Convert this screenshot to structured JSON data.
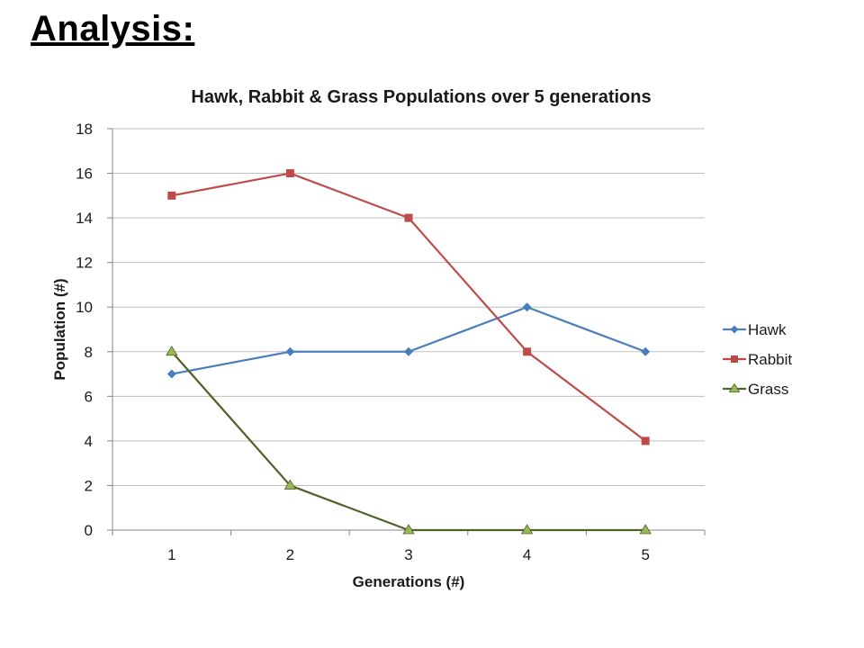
{
  "slide": {
    "title": "Analysis:"
  },
  "chart_data": {
    "type": "line",
    "title": "Hawk, Rabbit & Grass Populations over 5 generations",
    "xlabel": "Generations (#)",
    "ylabel": "Population (#)",
    "categories": [
      "1",
      "2",
      "3",
      "4",
      "5"
    ],
    "ylim": [
      0,
      18
    ],
    "yticks": [
      0,
      2,
      4,
      6,
      8,
      10,
      12,
      14,
      16,
      18
    ],
    "grid": "horizontal",
    "legend_position": "right",
    "series": [
      {
        "name": "Hawk",
        "values": [
          7,
          8,
          8,
          10,
          8
        ],
        "color": "#4a7ebb",
        "marker": "diamond"
      },
      {
        "name": "Rabbit",
        "values": [
          15,
          16,
          14,
          8,
          4
        ],
        "color": "#be4b48",
        "marker": "square"
      },
      {
        "name": "Grass",
        "values": [
          8,
          2,
          0,
          0,
          0
        ],
        "color": "#4f6228",
        "marker": "triangle",
        "marker_color": "#98b954"
      }
    ]
  }
}
